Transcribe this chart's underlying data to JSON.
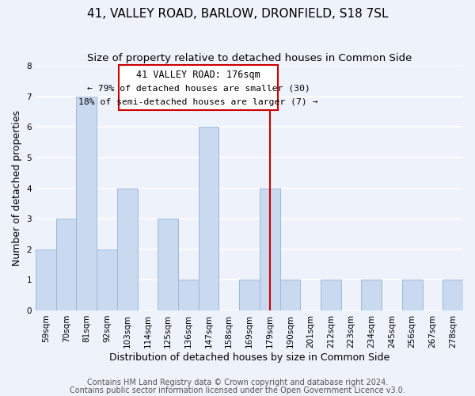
{
  "title": "41, VALLEY ROAD, BARLOW, DRONFIELD, S18 7SL",
  "subtitle": "Size of property relative to detached houses in Common Side",
  "xlabel": "Distribution of detached houses by size in Common Side",
  "ylabel": "Number of detached properties",
  "bin_labels": [
    "59sqm",
    "70sqm",
    "81sqm",
    "92sqm",
    "103sqm",
    "114sqm",
    "125sqm",
    "136sqm",
    "147sqm",
    "158sqm",
    "169sqm",
    "179sqm",
    "190sqm",
    "201sqm",
    "212sqm",
    "223sqm",
    "234sqm",
    "245sqm",
    "256sqm",
    "267sqm",
    "278sqm"
  ],
  "bar_heights": [
    2,
    3,
    7,
    2,
    4,
    0,
    3,
    1,
    6,
    0,
    1,
    4,
    1,
    0,
    1,
    0,
    1,
    0,
    1,
    0,
    1
  ],
  "bar_color": "#c8d9f0",
  "bar_edge_color": "#a0b8d8",
  "annotation_title": "41 VALLEY ROAD: 176sqm",
  "annotation_line1": "← 79% of detached houses are smaller (30)",
  "annotation_line2": "18% of semi-detached houses are larger (7) →",
  "annotation_box_color": "#ffffff",
  "annotation_box_edge": "#cc0000",
  "ref_line_color": "#cc0000",
  "ref_line_label": "179sqm",
  "ylim": [
    0,
    8
  ],
  "yticks": [
    0,
    1,
    2,
    3,
    4,
    5,
    6,
    7,
    8
  ],
  "footer1": "Contains HM Land Registry data © Crown copyright and database right 2024.",
  "footer2": "Contains public sector information licensed under the Open Government Licence v3.0.",
  "background_color": "#eef2fa",
  "grid_color": "#ffffff",
  "title_fontsize": 11,
  "subtitle_fontsize": 9.5,
  "axis_label_fontsize": 9,
  "tick_fontsize": 7.5,
  "footer_fontsize": 7
}
